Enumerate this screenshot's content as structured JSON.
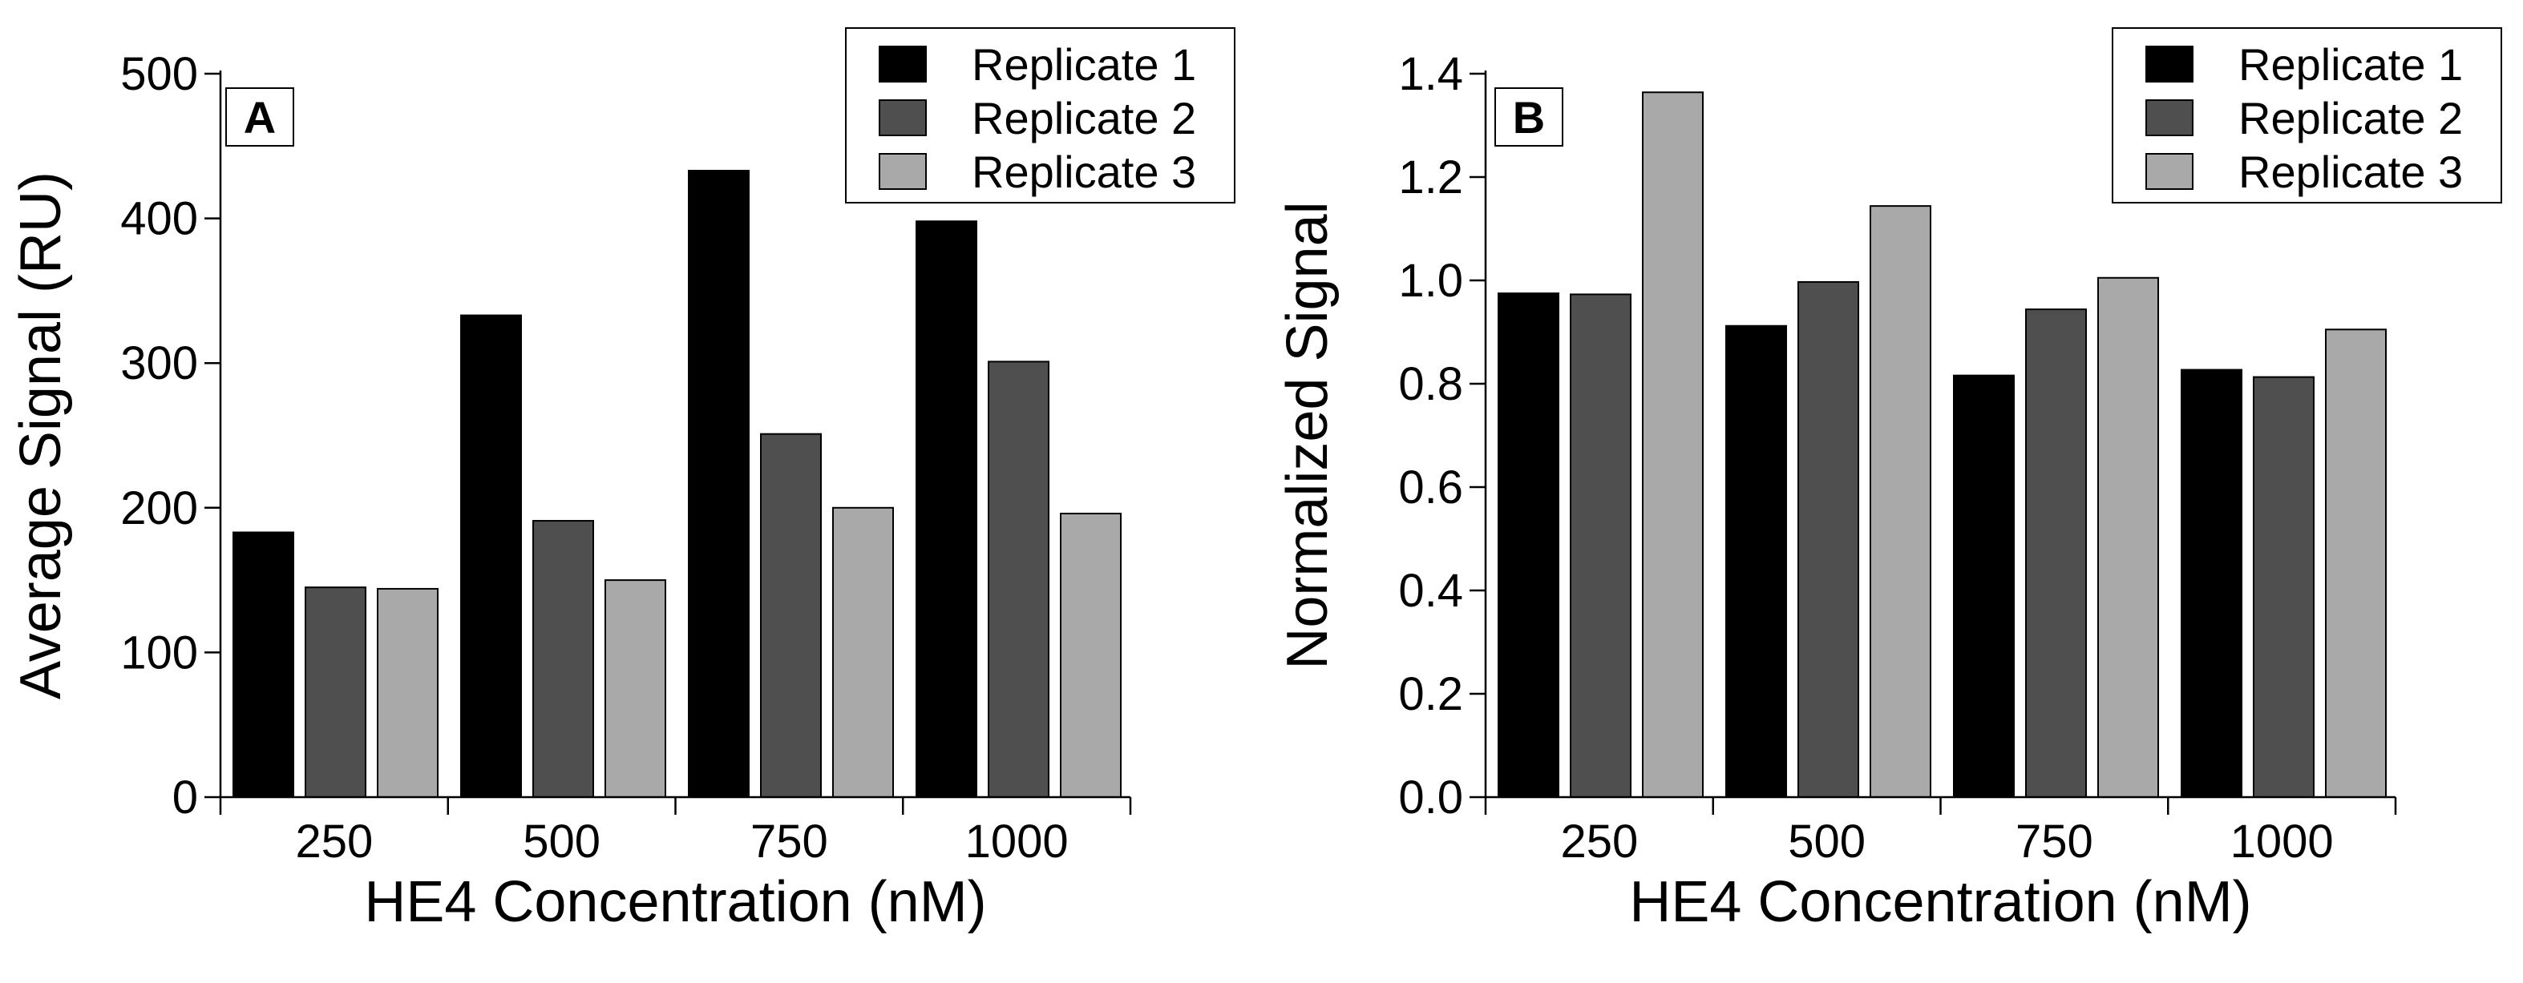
{
  "figure": {
    "legend_position": "top-right",
    "series_colors": [
      "#000000",
      "#4f4f4f",
      "#a9a9a9"
    ]
  },
  "chart_data": [
    {
      "type": "bar",
      "panel_label": "A",
      "title": "",
      "xlabel": "HE4 Concentration (nM)",
      "ylabel": "Average Signal (RU)",
      "categories": [
        "250",
        "500",
        "750",
        "1000"
      ],
      "ylim": [
        0,
        500
      ],
      "yticks": [
        0,
        100,
        200,
        300,
        400,
        500
      ],
      "ytick_labels": [
        "0",
        "100",
        "200",
        "300",
        "400",
        "500"
      ],
      "grid": false,
      "legend_position": "top-right",
      "series": [
        {
          "name": "Replicate 1",
          "color": "#000000",
          "values": [
            183,
            333,
            433,
            398
          ]
        },
        {
          "name": "Replicate 2",
          "color": "#4f4f4f",
          "values": [
            145,
            191,
            251,
            301
          ]
        },
        {
          "name": "Replicate 3",
          "color": "#a9a9a9",
          "values": [
            144,
            150,
            200,
            196
          ]
        }
      ]
    },
    {
      "type": "bar",
      "panel_label": "B",
      "title": "",
      "xlabel": "HE4 Concentration (nM)",
      "ylabel": "Normalized Signal",
      "categories": [
        "250",
        "500",
        "750",
        "1000"
      ],
      "ylim": [
        0,
        1.4
      ],
      "yticks": [
        0,
        0.2,
        0.4,
        0.6,
        0.8,
        1.0,
        1.2,
        1.4
      ],
      "ytick_labels": [
        "0.0",
        "0.2",
        "0.4",
        "0.6",
        "0.8",
        "1.0",
        "1.2",
        "1.4"
      ],
      "grid": false,
      "legend_position": "top-right",
      "series": [
        {
          "name": "Replicate 1",
          "color": "#000000",
          "values": [
            0.975,
            0.912,
            0.816,
            0.827
          ]
        },
        {
          "name": "Replicate 2",
          "color": "#4f4f4f",
          "values": [
            0.973,
            0.997,
            0.944,
            0.813
          ]
        },
        {
          "name": "Replicate 3",
          "color": "#a9a9a9",
          "values": [
            1.364,
            1.144,
            1.005,
            0.905
          ]
        }
      ]
    }
  ]
}
